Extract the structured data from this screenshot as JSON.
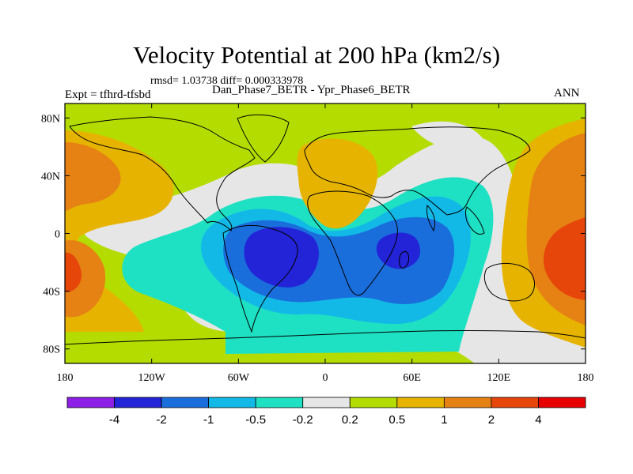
{
  "chart_data": {
    "type": "contour-map",
    "title": "Velocity Potential at 200 hPa (km2/s)",
    "stats": "rmsd= 1.03738  diff= 0.000333978",
    "expt": "Expt = tfhrd-tfsbd",
    "cases": "Dan_Phase7_BETR - Ypr_Phase6_BETR",
    "season": "ANN",
    "x_ticks": [
      "180",
      "120W",
      "60W",
      "0",
      "60E",
      "120E",
      "180"
    ],
    "x_tick_values": [
      -180,
      -120,
      -60,
      0,
      60,
      120,
      180
    ],
    "y_ticks": [
      "80N",
      "40N",
      "0",
      "40S",
      "80S"
    ],
    "y_tick_values": [
      80,
      40,
      0,
      -40,
      -80
    ],
    "xlim": [
      -180,
      180
    ],
    "ylim": [
      -90,
      90
    ],
    "contour_levels": [
      "-4",
      "-2",
      "-1",
      "-0.5",
      "-0.2",
      "0.2",
      "0.5",
      "1",
      "2",
      "4"
    ],
    "colors": [
      "#8c1ee6",
      "#2323d7",
      "#1a6edc",
      "#12b9e6",
      "#1ee1c3",
      "#e6e6e6",
      "#b4dc00",
      "#e6b400",
      "#e68214",
      "#e6460a",
      "#e60000"
    ],
    "features": [
      {
        "label": "Indian Ocean minimum",
        "lon": 60,
        "lat": -15,
        "level": "-2"
      },
      {
        "label": "South America / Atlantic minimum",
        "lon": -35,
        "lat": -15,
        "level": "-2"
      },
      {
        "label": "West Pacific maximum",
        "lon": 160,
        "lat": -20,
        "level": "2"
      },
      {
        "label": "Dateline maximum",
        "lon": -178,
        "lat": -25,
        "level": "2"
      }
    ]
  }
}
